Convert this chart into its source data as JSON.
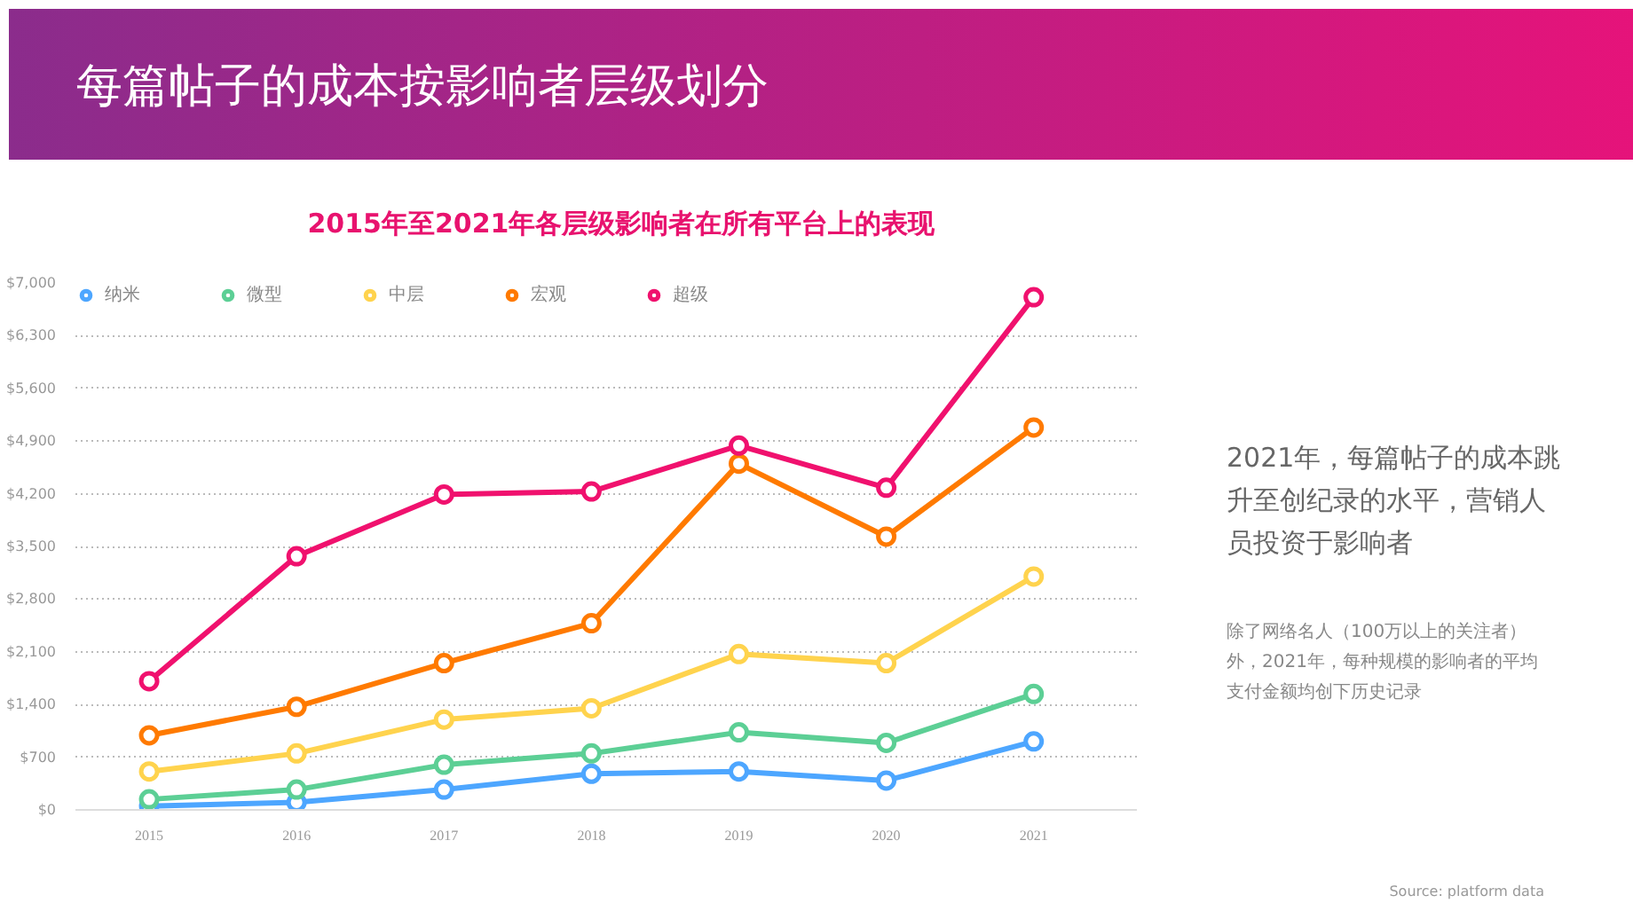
{
  "chart_data": {
    "type": "line",
    "title": "2015年至2021年各层级影响者在所有平台上的表现",
    "categories": [
      "2015",
      "2016",
      "2017",
      "2018",
      "2019",
      "2020",
      "2021"
    ],
    "series": [
      {
        "name": "纳米",
        "color": "#4da6ff",
        "values": [
          50,
          100,
          270,
          480,
          510,
          390,
          910
        ]
      },
      {
        "name": "微型",
        "color": "#5ccf95",
        "values": [
          140,
          270,
          600,
          750,
          1030,
          890,
          1540
        ]
      },
      {
        "name": "中层",
        "color": "#ffd34d",
        "values": [
          510,
          750,
          1200,
          1350,
          2070,
          1950,
          3100
        ]
      },
      {
        "name": "宏观",
        "color": "#ff7a00",
        "values": [
          990,
          1370,
          1950,
          2480,
          4600,
          3630,
          5080
        ]
      },
      {
        "name": "超级",
        "color": "#f0116e",
        "values": [
          1710,
          3370,
          4190,
          4230,
          4840,
          4280,
          6810
        ]
      }
    ],
    "ylim": [
      0,
      7000
    ],
    "yticks": [
      {
        "value": 0,
        "label": "$0"
      },
      {
        "value": 700,
        "label": "$700"
      },
      {
        "value": 1400,
        "label": "$1,400"
      },
      {
        "value": 2100,
        "label": "$2,100"
      },
      {
        "value": 2800,
        "label": "$2,800"
      },
      {
        "value": 3500,
        "label": "$3,500"
      },
      {
        "value": 4200,
        "label": "$4,200"
      },
      {
        "value": 4900,
        "label": "$4,900"
      },
      {
        "value": 5600,
        "label": "$5,600"
      },
      {
        "value": 6300,
        "label": "$6,300"
      },
      {
        "value": 7000,
        "label": "$7,000"
      }
    ],
    "grid": "y",
    "legend": "top left",
    "marker": "circle",
    "line_style": "solid",
    "annotations": [
      "每篇帖子的成本按影响者层级划分",
      "2021年，每篇帖子的成本跳升至创纪录的水平，营销人员投资于影响者",
      "除了网络名人（100万以上的关注者）外，2021年，每种规模的影响者的平均支付金额均创下历史记录",
      "Source: platform data"
    ]
  }
}
